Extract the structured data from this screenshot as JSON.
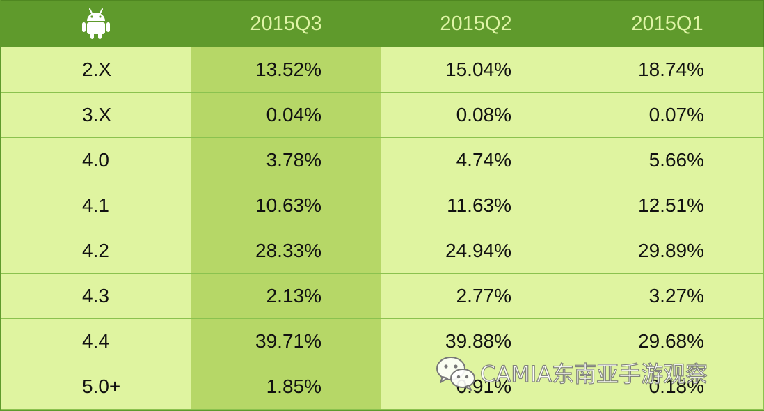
{
  "chart_data": {
    "type": "table",
    "header_icon": "android-icon",
    "columns": [
      "2015Q3",
      "2015Q2",
      "2015Q1"
    ],
    "rows": [
      {
        "label": "2.X",
        "values": [
          "13.52%",
          "15.04%",
          "18.74%"
        ]
      },
      {
        "label": "3.X",
        "values": [
          "0.04%",
          "0.08%",
          "0.07%"
        ]
      },
      {
        "label": "4.0",
        "values": [
          "3.78%",
          "4.74%",
          "5.66%"
        ]
      },
      {
        "label": "4.1",
        "values": [
          "10.63%",
          "11.63%",
          "12.51%"
        ]
      },
      {
        "label": "4.2",
        "values": [
          "28.33%",
          "24.94%",
          "29.89%"
        ]
      },
      {
        "label": "4.3",
        "values": [
          "2.13%",
          "2.77%",
          "3.27%"
        ]
      },
      {
        "label": "4.4",
        "values": [
          "39.71%",
          "39.88%",
          "29.68%"
        ]
      },
      {
        "label": "5.0+",
        "values": [
          "1.85%",
          "0.91%",
          "0.18%"
        ]
      }
    ],
    "highlight_column": "2015Q3"
  },
  "watermark": {
    "icon": "wechat-icon",
    "text": "CAMIA东南亚手游观察"
  },
  "colors": {
    "header_bg": "#5f9a2c",
    "header_text": "#dff4a6",
    "cell_bg": "#dff4a0",
    "highlight_bg": "#b6d767",
    "grid_line": "#8bc24f",
    "icon": "#ffffff"
  }
}
